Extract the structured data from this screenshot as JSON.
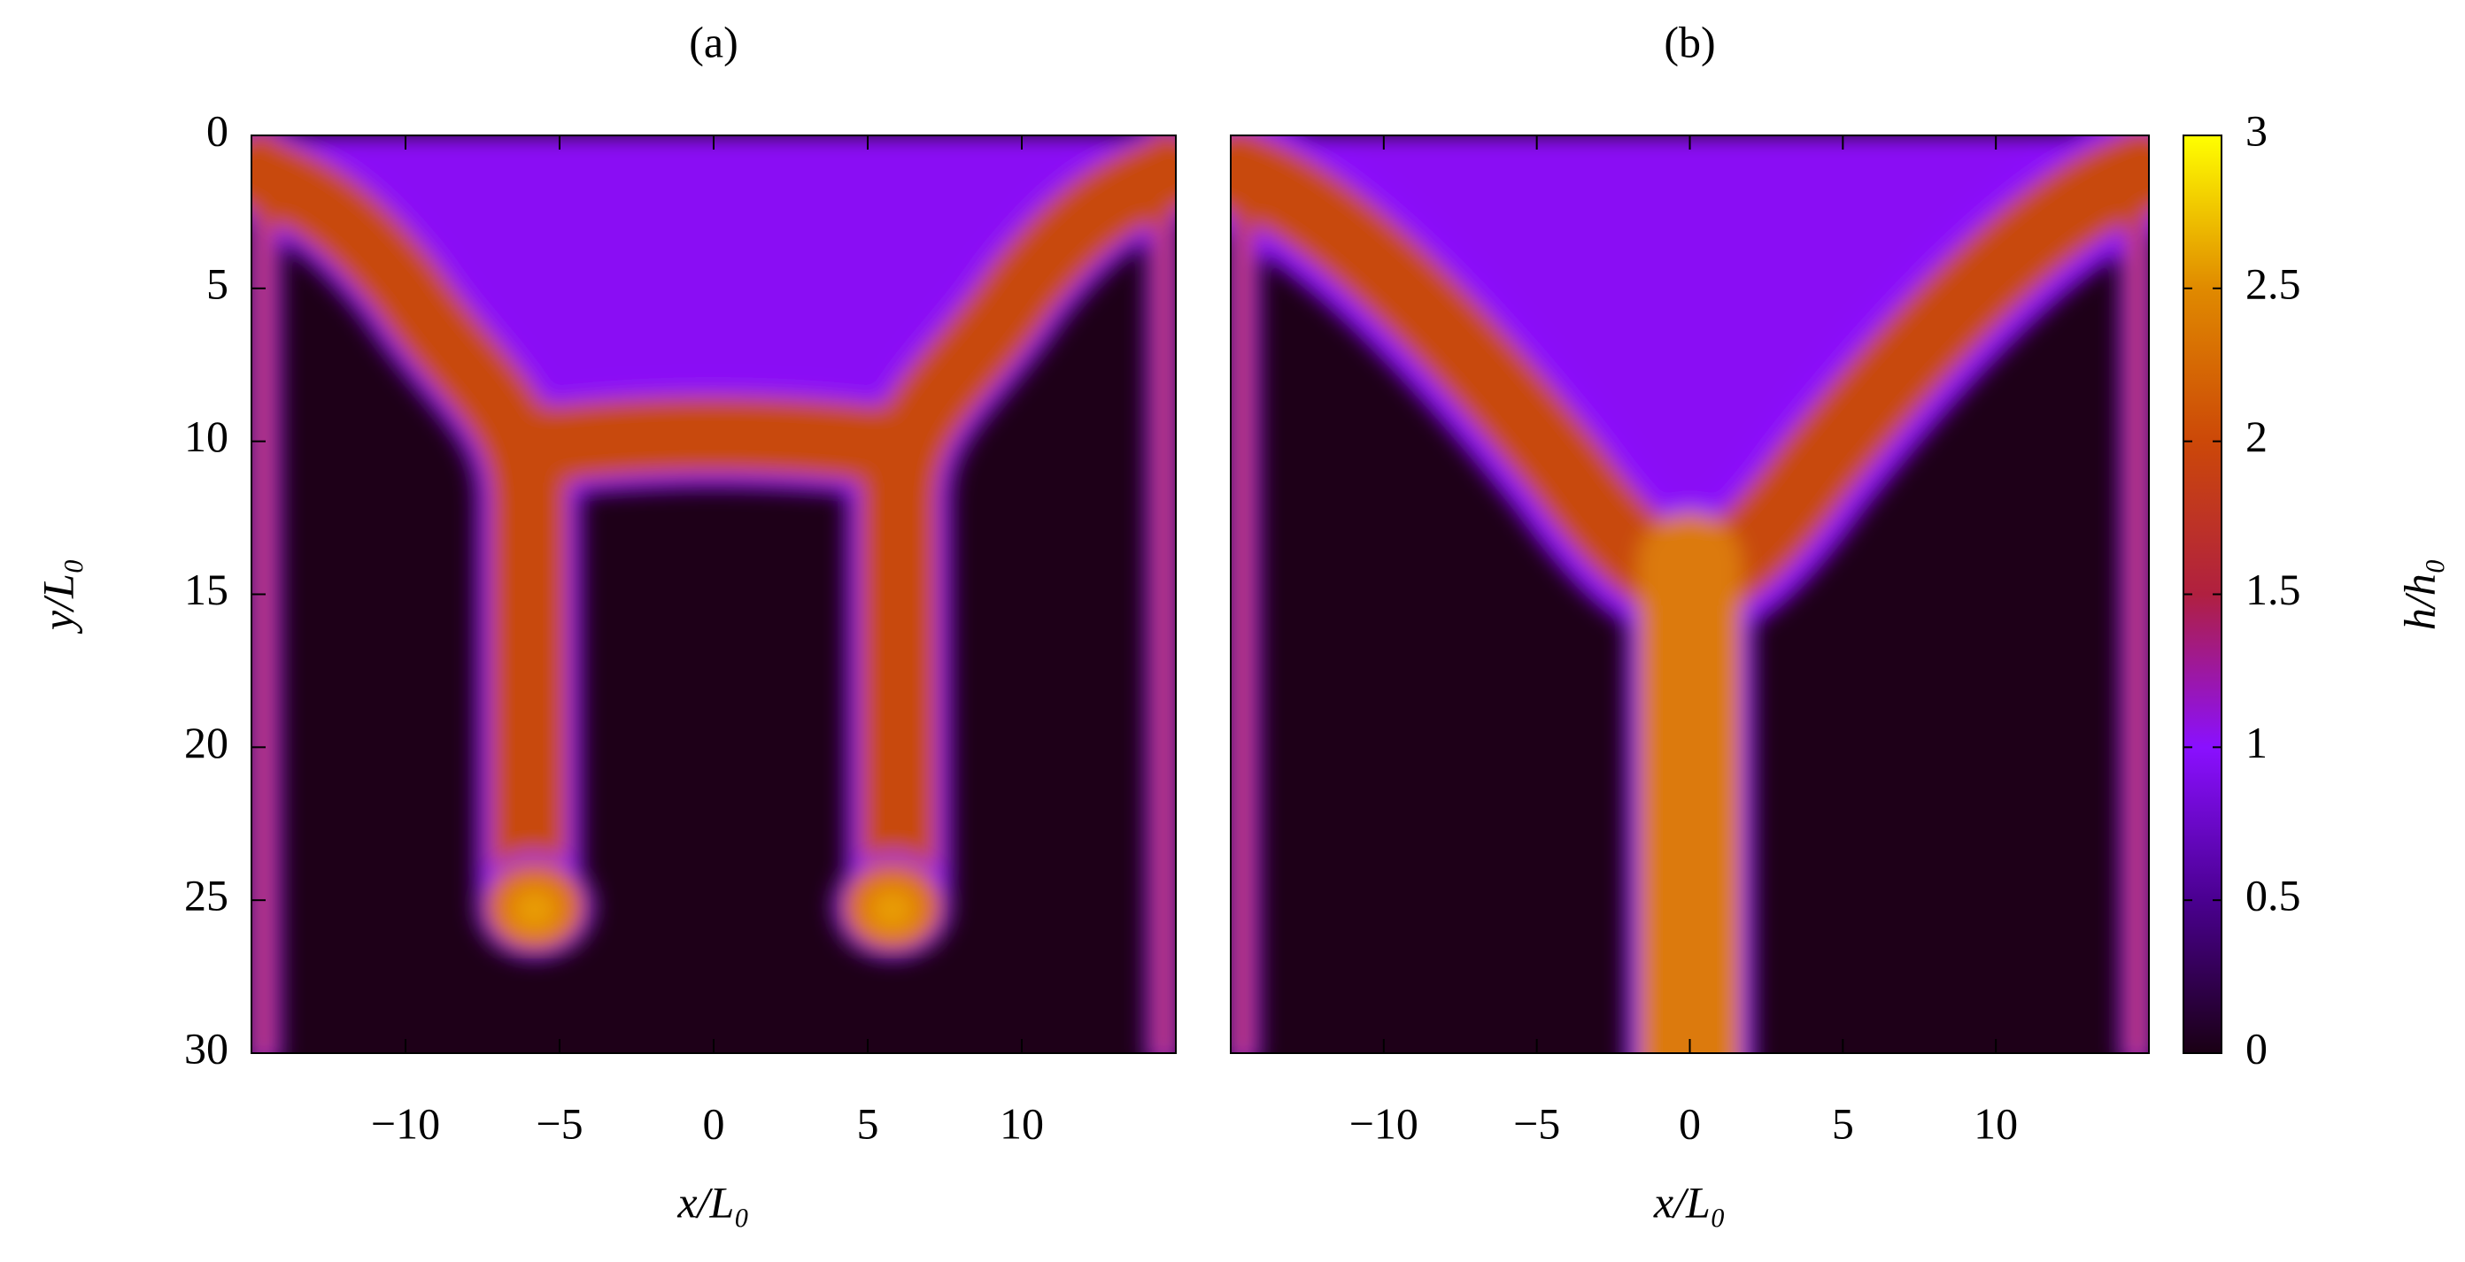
{
  "chart_data": [
    {
      "type": "heatmap",
      "title": "(a)",
      "xlabel": "x/L₀",
      "ylabel": "y/L₀",
      "xlim": [
        -15,
        15
      ],
      "ylim": [
        0,
        30
      ],
      "y_inverted": true,
      "xticks": [
        {
          "value": -10,
          "label": "−10"
        },
        {
          "value": -5,
          "label": "−5"
        },
        0,
        5,
        10
      ],
      "yticks": [
        0,
        5,
        10,
        15,
        20,
        25,
        30
      ]
    },
    {
      "type": "heatmap",
      "title": "(b)",
      "xlabel": "x/L₀",
      "xlim": [
        -15,
        15
      ],
      "ylim": [
        0,
        30
      ],
      "y_inverted": true,
      "xticks": [
        {
          "value": -10,
          "label": "−10"
        },
        {
          "value": -5,
          "label": "−5"
        },
        0,
        5,
        10
      ],
      "colorbar": {
        "label": "h/h₀",
        "lim": [
          0,
          3
        ],
        "ticks": [
          0,
          0.5,
          1,
          1.5,
          2,
          2.5,
          3
        ],
        "colors": [
          "#1a0014",
          "#4a0090",
          "#8a10ff",
          "#b02040",
          "#cc4808",
          "#e08a00",
          "#ffff00"
        ]
      }
    }
  ]
}
